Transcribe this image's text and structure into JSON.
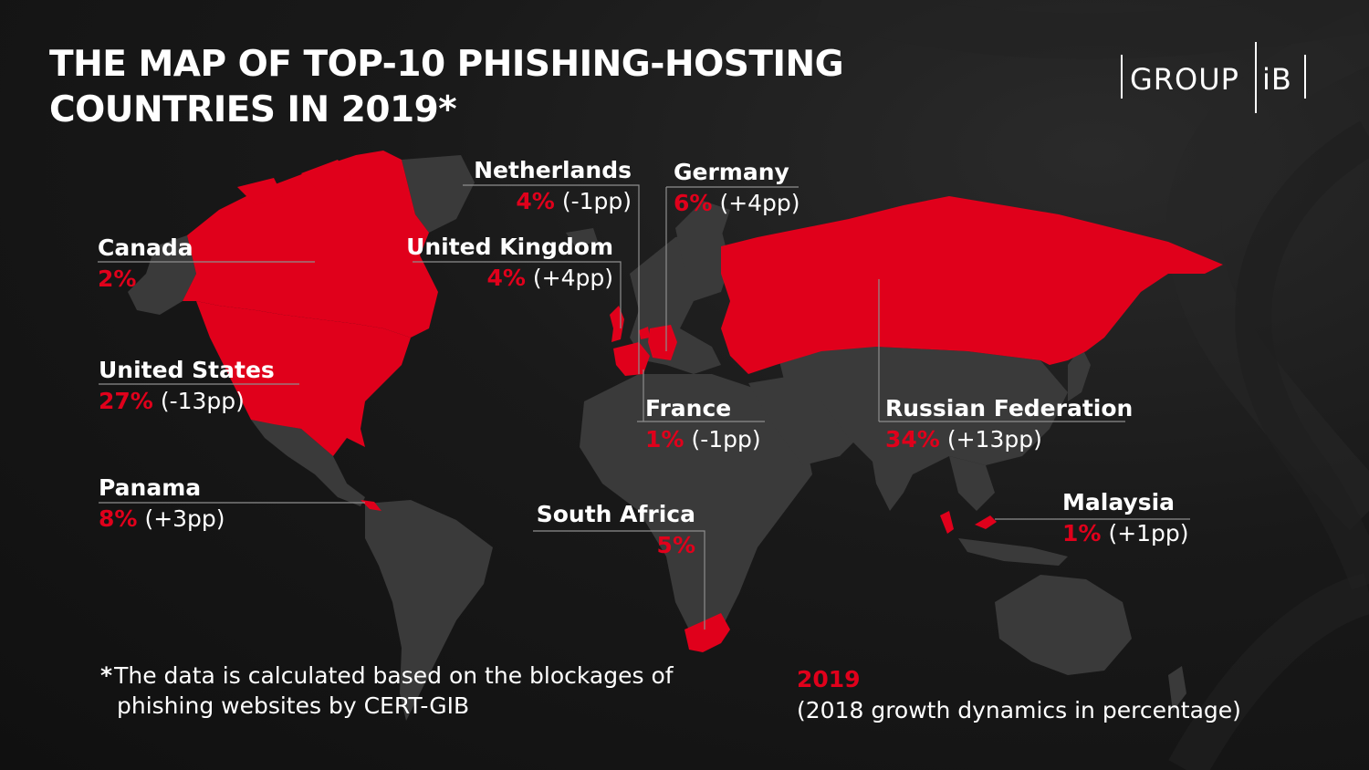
{
  "title": {
    "line1": "THE MAP OF TOP-10 PHISHING-HOSTING",
    "line2": "COUNTRIES IN 2019*"
  },
  "logo": {
    "left": "GROUP",
    "right": "iB"
  },
  "countries": {
    "canada": {
      "name": "Canada",
      "share": "2%",
      "change": ""
    },
    "united_states": {
      "name": "United States",
      "share": "27%",
      "change": "(-13pp)"
    },
    "panama": {
      "name": "Panama",
      "share": "8%",
      "change": "(+3pp)"
    },
    "netherlands": {
      "name": "Netherlands",
      "share": "4%",
      "change": "(-1pp)"
    },
    "united_kingdom": {
      "name": "United Kingdom",
      "share": "4%",
      "change": "(+4pp)"
    },
    "germany": {
      "name": "Germany",
      "share": "6%",
      "change": "(+4pp)"
    },
    "france": {
      "name": "France",
      "share": "1%",
      "change": "(-1pp)"
    },
    "russian_federation": {
      "name": "Russian Federation",
      "share": "34%",
      "change": "(+13pp)"
    },
    "south_africa": {
      "name": "South Africa",
      "share": "5%",
      "change": ""
    },
    "malaysia": {
      "name": "Malaysia",
      "share": "1%",
      "change": "(+1pp)"
    }
  },
  "footnote": {
    "star": "*",
    "line1": "The data is calculated based on the blockages of",
    "line2": "phishing websites by CERT-GIB"
  },
  "legend": {
    "year": "2019",
    "description": "(2018 growth dynamics in percentage)"
  },
  "colors": {
    "highlight": "#e0001b",
    "land": "#3a3a3a",
    "background": "#141414",
    "text": "#ffffff"
  },
  "highlighted_countries": [
    "Canada",
    "United States",
    "Panama",
    "Netherlands",
    "United Kingdom",
    "Germany",
    "France",
    "Russian Federation",
    "South Africa",
    "Malaysia"
  ]
}
